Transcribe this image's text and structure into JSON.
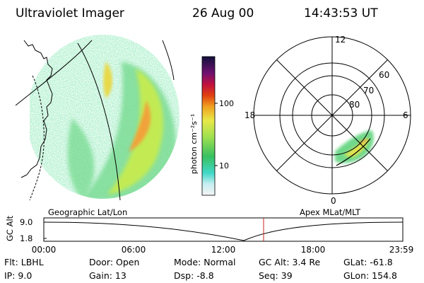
{
  "header": {
    "instrument": "Ultraviolet Imager",
    "date": "26 Aug 00",
    "time": "14:43:53 UT"
  },
  "colorbar": {
    "unit_label": "photon cm⁻²s⁻¹",
    "ticks": [
      "100",
      "10"
    ]
  },
  "polar_grid": {
    "mlt_labels": {
      "top": "12",
      "left": "18",
      "right": "6",
      "bottom": "0"
    },
    "lat_labels": [
      "60",
      "70",
      "80"
    ]
  },
  "timeline": {
    "left_title": "Geographic Lat/Lon",
    "right_title": "Apex MLat/MLT",
    "y_axis_label": "GC Alt",
    "y_ticks": [
      "9.0",
      "1.8"
    ],
    "x_ticks": [
      "00:00",
      "06:00",
      "12:00",
      "18:00",
      "23:59"
    ]
  },
  "info": {
    "filter": "Flt: LBHL",
    "ip": "IP:  9.0",
    "door": "Door: Open",
    "gain": "Gain: 13",
    "mode": "Mode: Normal",
    "dsp": "Dsp:   -8.8",
    "gc_alt": "GC Alt: 3.4 Re",
    "seq": "Seq: 39",
    "glat": "GLat: -61.8",
    "glon": "GLon: 154.8"
  },
  "colors": {
    "grid": "#000000",
    "current_time_marker": "#cc2222",
    "aurora_low": "#5fd37a",
    "aurora_mid": "#cfe84a",
    "aurora_high": "#f2a23a"
  }
}
